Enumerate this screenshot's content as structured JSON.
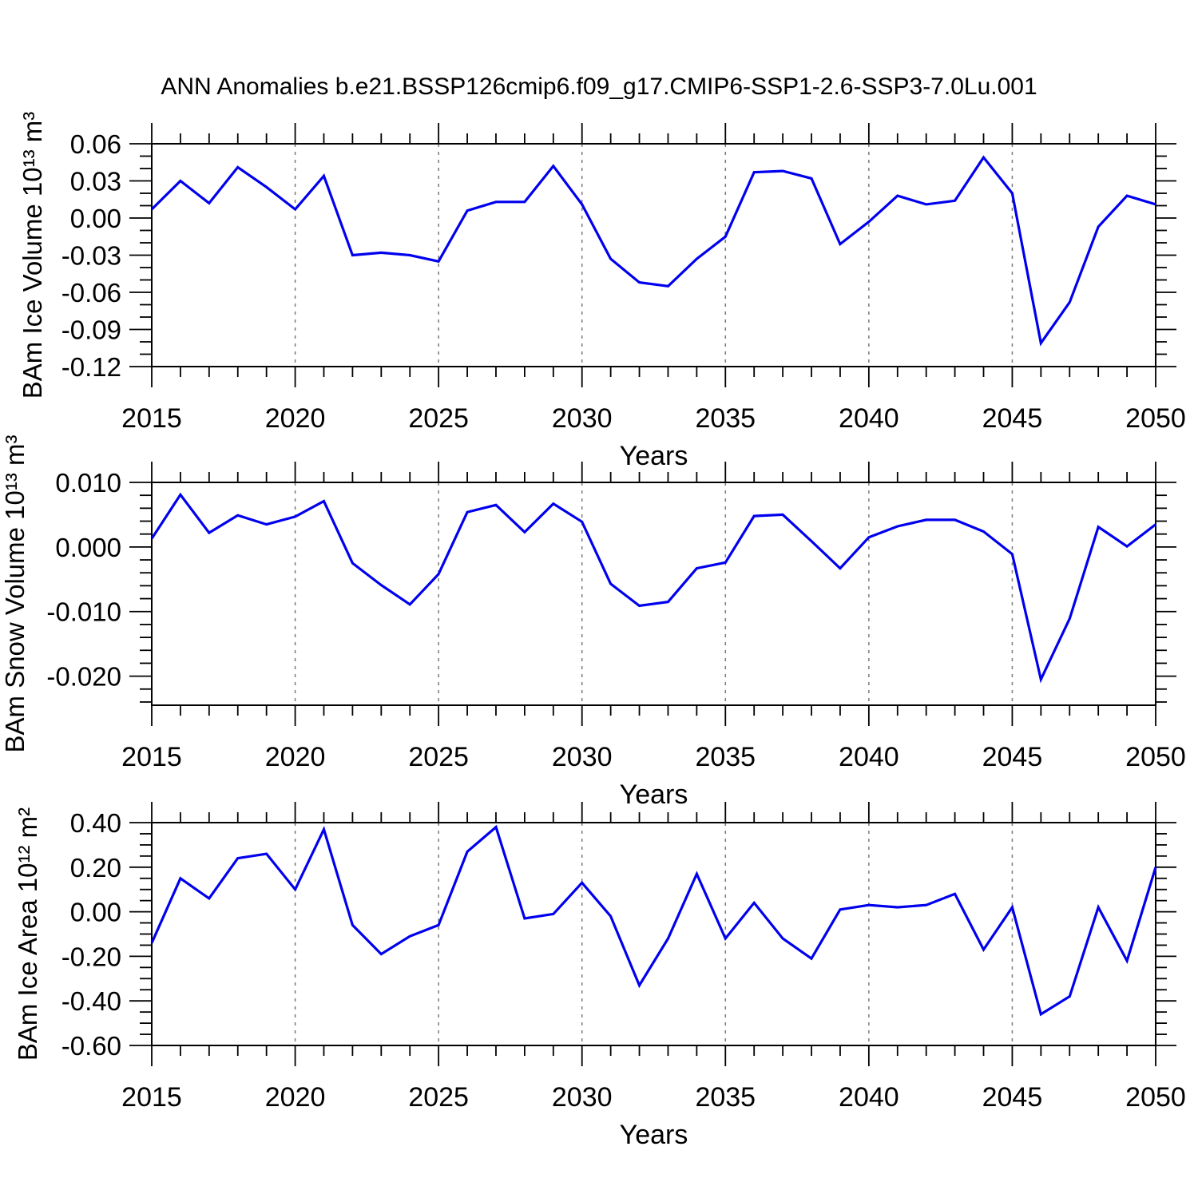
{
  "title": "ANN Anomalies b.e21.BSSP126cmip6.f09_g17.CMIP6-SSP1-2.6-SSP3-7.0Lu.001",
  "chart_data": {
    "type": "line",
    "title": "ANN Anomalies b.e21.BSSP126cmip6.f09_g17.CMIP6-SSP1-2.6-SSP3-7.0Lu.001",
    "xlabel": "Years",
    "x": [
      2015,
      2016,
      2017,
      2018,
      2019,
      2020,
      2021,
      2022,
      2023,
      2024,
      2025,
      2026,
      2027,
      2028,
      2029,
      2030,
      2031,
      2032,
      2033,
      2034,
      2035,
      2036,
      2037,
      2038,
      2039,
      2040,
      2041,
      2042,
      2043,
      2044,
      2045,
      2046,
      2047,
      2048,
      2049,
      2050
    ],
    "x_axis": {
      "min": 2015,
      "max": 2050,
      "major_tick_years": [
        2015,
        2020,
        2025,
        2030,
        2035,
        2040,
        2045,
        2050
      ],
      "major_tick_labels": [
        "2015",
        "2020",
        "2025",
        "2030",
        "2035",
        "2040",
        "2045",
        "2050"
      ],
      "minor_step": 1,
      "gridline_years": [
        2020,
        2025,
        2030,
        2035,
        2040,
        2045
      ],
      "grid_style": "dashed"
    },
    "line_color": "#0000EE",
    "panels": [
      {
        "id": "ice-volume",
        "ylabel": "BAm Ice Volume 10¹³ m³",
        "ylim": [
          -0.12,
          0.06
        ],
        "ytick_values": [
          0.06,
          0.03,
          0.0,
          -0.03,
          -0.06,
          -0.09,
          -0.12
        ],
        "ytick_labels": [
          "0.06",
          "0.03",
          "0.00",
          "-0.03",
          "-0.06",
          "-0.09",
          "-0.12"
        ],
        "yminor_step": 0.01,
        "values": [
          0.007,
          0.03,
          0.012,
          0.041,
          0.025,
          0.007,
          0.034,
          -0.03,
          -0.028,
          -0.03,
          -0.035,
          0.006,
          0.013,
          0.013,
          0.042,
          0.011,
          -0.033,
          -0.052,
          -0.055,
          -0.033,
          -0.015,
          0.037,
          0.038,
          0.032,
          -0.021,
          -0.003,
          0.018,
          0.011,
          0.014,
          0.049,
          0.02,
          -0.101,
          -0.068,
          -0.007,
          0.018,
          0.011
        ]
      },
      {
        "id": "snow-volume",
        "ylabel": "BAm Snow Volume 10¹³ m³",
        "ylim": [
          -0.0245,
          0.01
        ],
        "ytick_values": [
          0.01,
          0.0,
          -0.01,
          -0.02
        ],
        "ytick_labels": [
          "0.010",
          "0.000",
          "-0.010",
          "-0.020"
        ],
        "yminor_step": 0.002,
        "values": [
          0.0013,
          0.0081,
          0.0022,
          0.0049,
          0.0035,
          0.0047,
          0.0071,
          -0.0025,
          -0.0059,
          -0.0089,
          -0.0042,
          0.0054,
          0.0065,
          0.0023,
          0.0067,
          0.0039,
          -0.0057,
          -0.0091,
          -0.0085,
          -0.0033,
          -0.0024,
          0.0048,
          0.005,
          0.0009,
          -0.0033,
          0.0015,
          0.0032,
          0.0042,
          0.0042,
          0.0024,
          -0.0011,
          -0.0205,
          -0.0111,
          0.0031,
          0.0001,
          0.0035
        ]
      },
      {
        "id": "ice-area",
        "ylabel": "BAm Ice Area 10¹² m²",
        "ylim": [
          -0.6,
          0.4
        ],
        "ytick_values": [
          0.4,
          0.2,
          0.0,
          -0.2,
          -0.4,
          -0.6
        ],
        "ytick_labels": [
          "0.40",
          "0.20",
          "0.00",
          "-0.20",
          "-0.40",
          "-0.60"
        ],
        "yminor_step": 0.05,
        "values": [
          -0.14,
          0.15,
          0.06,
          0.24,
          0.26,
          0.1,
          0.37,
          -0.06,
          -0.19,
          -0.11,
          -0.06,
          0.27,
          0.38,
          -0.03,
          -0.01,
          0.13,
          -0.02,
          -0.33,
          -0.12,
          0.17,
          -0.12,
          0.04,
          -0.12,
          -0.21,
          0.01,
          0.03,
          0.02,
          0.03,
          0.08,
          -0.17,
          0.02,
          -0.46,
          -0.38,
          0.02,
          -0.22,
          0.2
        ]
      }
    ]
  }
}
